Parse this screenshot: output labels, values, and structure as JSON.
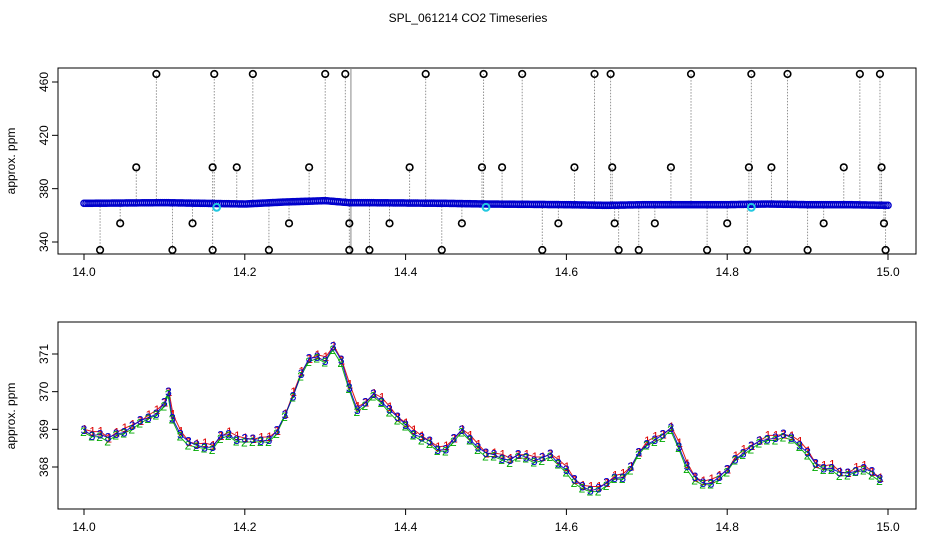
{
  "title": "SPL_061214  CO2 Timeseries",
  "chart_data": [
    {
      "type": "scatter",
      "panel": "top",
      "ylabel": "approx. ppm",
      "xlabel": "",
      "xlim": [
        14.0,
        15.0
      ],
      "ylim": [
        330,
        470
      ],
      "xticks": [
        "14.0",
        "14.2",
        "14.4",
        "14.6",
        "14.8",
        "15.0"
      ],
      "yticks": [
        "340",
        "380",
        "420",
        "460"
      ],
      "baseline": {
        "x": [
          14.0,
          14.1,
          14.2,
          14.25,
          14.3,
          14.33,
          14.35,
          14.45,
          14.5,
          14.6,
          14.65,
          14.7,
          14.75,
          14.8,
          14.85,
          14.9,
          14.95,
          15.0
        ],
        "y": [
          369,
          369.5,
          368.5,
          370,
          371,
          369.5,
          369.5,
          369,
          368.5,
          368,
          367.5,
          368,
          368,
          368,
          368.5,
          368,
          368,
          367.5
        ]
      },
      "spikes": [
        {
          "x": 14.02,
          "y": 334
        },
        {
          "x": 14.045,
          "y": 354
        },
        {
          "x": 14.065,
          "y": 396
        },
        {
          "x": 14.09,
          "y": 466
        },
        {
          "x": 14.11,
          "y": 334
        },
        {
          "x": 14.135,
          "y": 354
        },
        {
          "x": 14.16,
          "y": 334
        },
        {
          "x": 14.16,
          "y": 396
        },
        {
          "x": 14.162,
          "y": 466
        },
        {
          "x": 14.19,
          "y": 396
        },
        {
          "x": 14.21,
          "y": 466
        },
        {
          "x": 14.23,
          "y": 334
        },
        {
          "x": 14.255,
          "y": 354
        },
        {
          "x": 14.28,
          "y": 396
        },
        {
          "x": 14.3,
          "y": 466
        },
        {
          "x": 14.325,
          "y": 466
        },
        {
          "x": 14.33,
          "y": 334
        },
        {
          "x": 14.33,
          "y": 354
        },
        {
          "x": 14.355,
          "y": 334
        },
        {
          "x": 14.38,
          "y": 354
        },
        {
          "x": 14.405,
          "y": 396
        },
        {
          "x": 14.425,
          "y": 466
        },
        {
          "x": 14.445,
          "y": 334
        },
        {
          "x": 14.47,
          "y": 354
        },
        {
          "x": 14.495,
          "y": 396
        },
        {
          "x": 14.497,
          "y": 466
        },
        {
          "x": 14.52,
          "y": 396
        },
        {
          "x": 14.545,
          "y": 466
        },
        {
          "x": 14.57,
          "y": 334
        },
        {
          "x": 14.59,
          "y": 354
        },
        {
          "x": 14.61,
          "y": 396
        },
        {
          "x": 14.635,
          "y": 466
        },
        {
          "x": 14.655,
          "y": 466
        },
        {
          "x": 14.657,
          "y": 396
        },
        {
          "x": 14.66,
          "y": 354
        },
        {
          "x": 14.665,
          "y": 334
        },
        {
          "x": 14.69,
          "y": 334
        },
        {
          "x": 14.71,
          "y": 354
        },
        {
          "x": 14.73,
          "y": 396
        },
        {
          "x": 14.755,
          "y": 466
        },
        {
          "x": 14.775,
          "y": 334
        },
        {
          "x": 14.8,
          "y": 354
        },
        {
          "x": 14.825,
          "y": 334
        },
        {
          "x": 14.827,
          "y": 396
        },
        {
          "x": 14.83,
          "y": 466
        },
        {
          "x": 14.855,
          "y": 396
        },
        {
          "x": 14.875,
          "y": 466
        },
        {
          "x": 14.9,
          "y": 334
        },
        {
          "x": 14.92,
          "y": 354
        },
        {
          "x": 14.945,
          "y": 396
        },
        {
          "x": 14.965,
          "y": 466
        },
        {
          "x": 14.99,
          "y": 466
        },
        {
          "x": 14.992,
          "y": 396
        },
        {
          "x": 14.995,
          "y": 354
        },
        {
          "x": 14.997,
          "y": 334
        }
      ],
      "cyan_points": [
        {
          "x": 14.165,
          "y": 366
        },
        {
          "x": 14.5,
          "y": 366
        },
        {
          "x": 14.83,
          "y": 366
        }
      ],
      "colors": {
        "baseline": "#0000cc",
        "spike": "#000000",
        "cyan": "#22c8e0",
        "gap": "#888888"
      }
    },
    {
      "type": "line",
      "panel": "bottom",
      "ylabel": "approx. ppm",
      "xlabel": "",
      "xlim": [
        14.0,
        15.0
      ],
      "ylim": [
        367,
        371.7
      ],
      "xticks": [
        "14.0",
        "14.2",
        "14.4",
        "14.6",
        "14.8",
        "15.0"
      ],
      "yticks": [
        "368",
        "369",
        "370",
        "371"
      ],
      "series_labels": [
        "1",
        "2",
        "3"
      ],
      "series_colors": [
        "#dd0000",
        "#00aa00",
        "#0000cc"
      ],
      "x": [
        14.0,
        14.01,
        14.02,
        14.03,
        14.04,
        14.05,
        14.06,
        14.07,
        14.08,
        14.09,
        14.1,
        14.105,
        14.11,
        14.12,
        14.13,
        14.14,
        14.15,
        14.16,
        14.17,
        14.18,
        14.19,
        14.2,
        14.21,
        14.22,
        14.23,
        14.24,
        14.25,
        14.26,
        14.27,
        14.28,
        14.29,
        14.3,
        14.31,
        14.32,
        14.33,
        14.34,
        14.35,
        14.36,
        14.37,
        14.38,
        14.39,
        14.4,
        14.41,
        14.42,
        14.43,
        14.44,
        14.45,
        14.46,
        14.47,
        14.48,
        14.49,
        14.5,
        14.51,
        14.52,
        14.53,
        14.54,
        14.55,
        14.56,
        14.57,
        14.58,
        14.59,
        14.6,
        14.61,
        14.62,
        14.63,
        14.64,
        14.65,
        14.66,
        14.67,
        14.68,
        14.69,
        14.7,
        14.71,
        14.72,
        14.73,
        14.74,
        14.75,
        14.76,
        14.77,
        14.78,
        14.79,
        14.8,
        14.81,
        14.82,
        14.83,
        14.84,
        14.85,
        14.86,
        14.87,
        14.88,
        14.89,
        14.9,
        14.91,
        14.92,
        14.93,
        14.94,
        14.95,
        14.96,
        14.97,
        14.98,
        14.99
      ],
      "y": [
        368.95,
        368.85,
        368.9,
        368.75,
        368.85,
        368.95,
        369.1,
        369.2,
        369.3,
        369.45,
        369.7,
        369.95,
        369.3,
        368.9,
        368.65,
        368.55,
        368.55,
        368.55,
        368.8,
        368.85,
        368.75,
        368.75,
        368.7,
        368.7,
        368.75,
        368.95,
        369.35,
        369.9,
        370.5,
        370.85,
        370.9,
        370.85,
        371.2,
        370.8,
        370.1,
        369.55,
        369.7,
        369.9,
        369.75,
        369.55,
        369.3,
        369.1,
        368.9,
        368.8,
        368.65,
        368.45,
        368.5,
        368.75,
        368.95,
        368.75,
        368.55,
        368.35,
        368.3,
        368.25,
        368.2,
        368.3,
        368.25,
        368.2,
        368.25,
        368.3,
        368.1,
        367.95,
        367.65,
        367.45,
        367.4,
        367.45,
        367.55,
        367.7,
        367.75,
        368.0,
        368.35,
        368.6,
        368.75,
        368.85,
        369.0,
        368.55,
        368.05,
        367.7,
        367.55,
        367.6,
        367.75,
        367.9,
        368.2,
        368.4,
        368.55,
        368.65,
        368.75,
        368.8,
        368.85,
        368.75,
        368.6,
        368.4,
        368.05,
        367.95,
        368.0,
        367.85,
        367.8,
        367.9,
        368.0,
        367.85,
        367.65
      ]
    }
  ]
}
